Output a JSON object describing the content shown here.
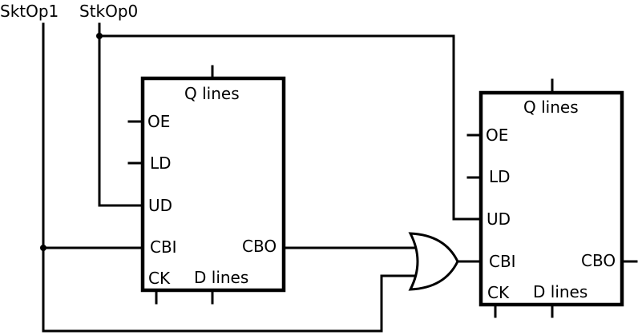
{
  "signals": {
    "input_1": "SktOp1",
    "input_2": "StkOp0"
  },
  "counter_left": {
    "q_lines": "Q lines",
    "oe": "OE",
    "ld": "LD",
    "ud": "UD",
    "cbi": "CBI",
    "cbo": "CBO",
    "ck": "CK",
    "d_lines": "D lines"
  },
  "counter_right": {
    "q_lines": "Q lines",
    "oe": "OE",
    "ld": "LD",
    "ud": "UD",
    "cbi": "CBI",
    "cbo": "CBO",
    "ck": "CK",
    "d_lines": "D lines"
  }
}
